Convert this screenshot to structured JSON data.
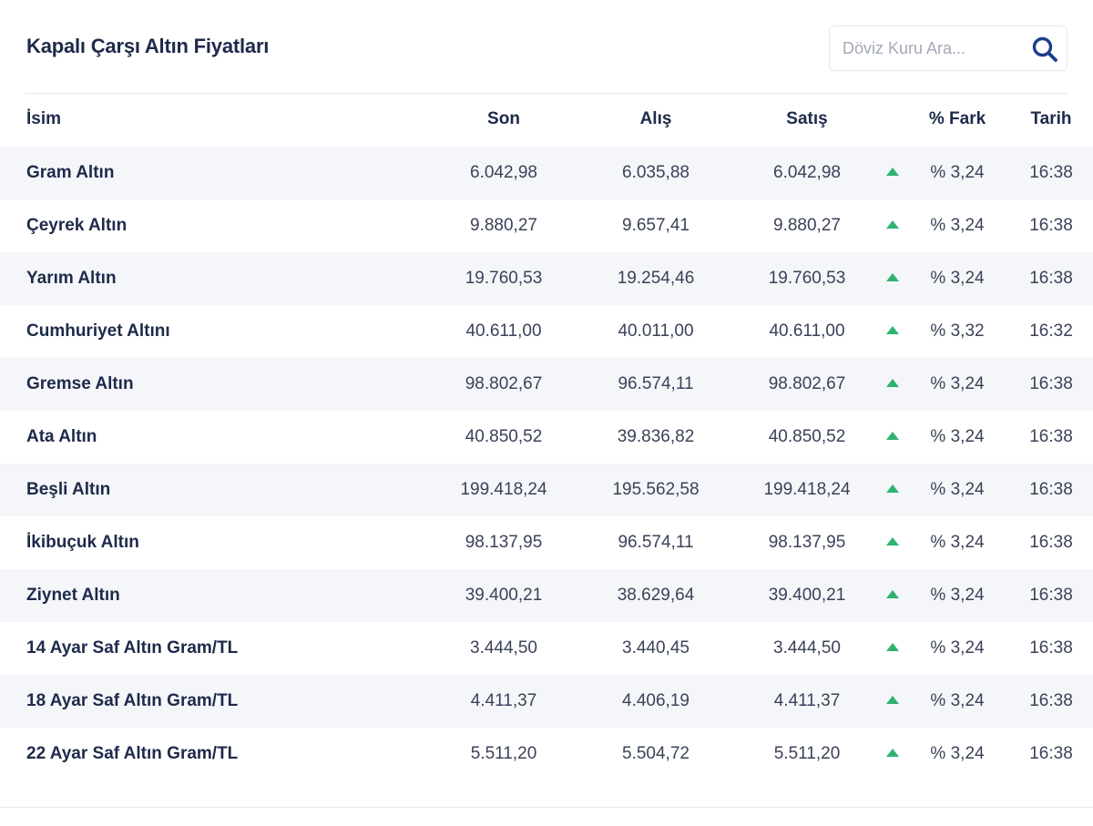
{
  "page": {
    "title": "Kapalı Çarşı Altın Fiyatları"
  },
  "search": {
    "placeholder": "Döviz Kuru Ara...",
    "icon": "search-icon"
  },
  "colors": {
    "text_primary": "#1e2a4a",
    "row_shade": "#f5f6f9",
    "trend_up": "#2fb370",
    "search_icon": "#1c3f8a"
  },
  "table": {
    "headers": {
      "isim": "İsim",
      "son": "Son",
      "alis": "Alış",
      "satis": "Satış",
      "fark": "% Fark",
      "tarih": "Tarih"
    },
    "rows": [
      {
        "name": "Gram Altın",
        "son": "6.042,98",
        "alis": "6.035,88",
        "satis": "6.042,98",
        "trend": "up",
        "fark": "% 3,24",
        "tarih": "16:38"
      },
      {
        "name": "Çeyrek Altın",
        "son": "9.880,27",
        "alis": "9.657,41",
        "satis": "9.880,27",
        "trend": "up",
        "fark": "% 3,24",
        "tarih": "16:38"
      },
      {
        "name": "Yarım Altın",
        "son": "19.760,53",
        "alis": "19.254,46",
        "satis": "19.760,53",
        "trend": "up",
        "fark": "% 3,24",
        "tarih": "16:38"
      },
      {
        "name": "Cumhuriyet Altını",
        "son": "40.611,00",
        "alis": "40.011,00",
        "satis": "40.611,00",
        "trend": "up",
        "fark": "% 3,32",
        "tarih": "16:32"
      },
      {
        "name": "Gremse Altın",
        "son": "98.802,67",
        "alis": "96.574,11",
        "satis": "98.802,67",
        "trend": "up",
        "fark": "% 3,24",
        "tarih": "16:38"
      },
      {
        "name": "Ata Altın",
        "son": "40.850,52",
        "alis": "39.836,82",
        "satis": "40.850,52",
        "trend": "up",
        "fark": "% 3,24",
        "tarih": "16:38"
      },
      {
        "name": "Beşli Altın",
        "son": "199.418,24",
        "alis": "195.562,58",
        "satis": "199.418,24",
        "trend": "up",
        "fark": "% 3,24",
        "tarih": "16:38"
      },
      {
        "name": "İkibuçuk Altın",
        "son": "98.137,95",
        "alis": "96.574,11",
        "satis": "98.137,95",
        "trend": "up",
        "fark": "% 3,24",
        "tarih": "16:38"
      },
      {
        "name": "Ziynet Altın",
        "son": "39.400,21",
        "alis": "38.629,64",
        "satis": "39.400,21",
        "trend": "up",
        "fark": "% 3,24",
        "tarih": "16:38"
      },
      {
        "name": "14 Ayar Saf Altın Gram/TL",
        "son": "3.444,50",
        "alis": "3.440,45",
        "satis": "3.444,50",
        "trend": "up",
        "fark": "% 3,24",
        "tarih": "16:38"
      },
      {
        "name": "18 Ayar Saf Altın Gram/TL",
        "son": "4.411,37",
        "alis": "4.406,19",
        "satis": "4.411,37",
        "trend": "up",
        "fark": "% 3,24",
        "tarih": "16:38"
      },
      {
        "name": "22 Ayar Saf Altın Gram/TL",
        "son": "5.511,20",
        "alis": "5.504,72",
        "satis": "5.511,20",
        "trend": "up",
        "fark": "% 3,24",
        "tarih": "16:38"
      }
    ]
  }
}
